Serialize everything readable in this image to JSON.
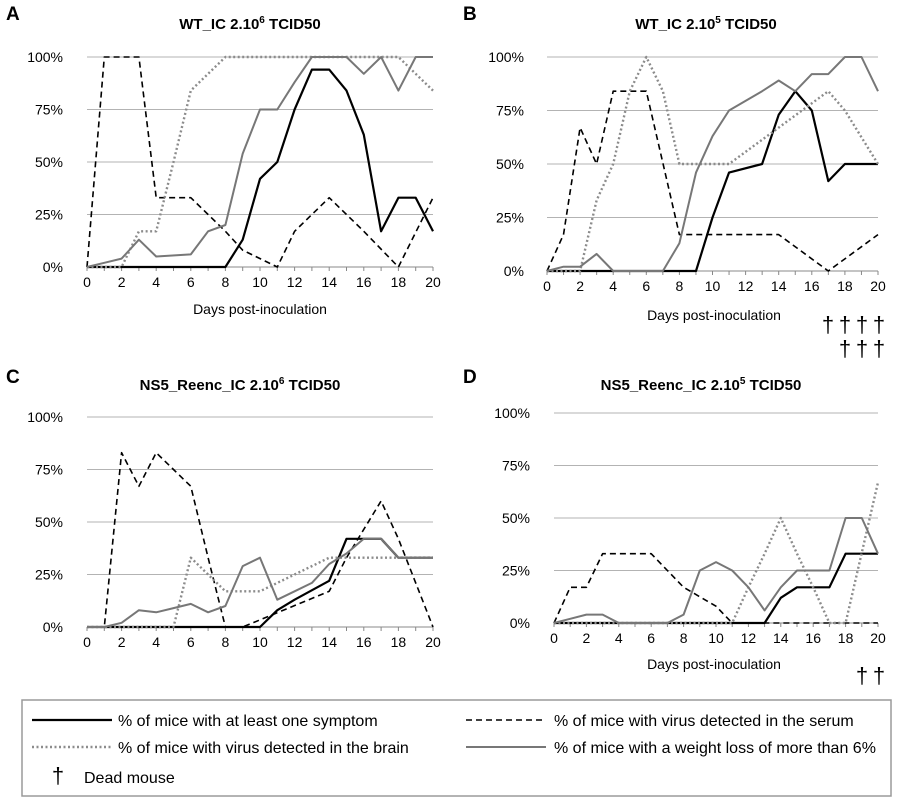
{
  "styles": {
    "symptom": {
      "color": "#000000",
      "dash": "",
      "width": 2.2
    },
    "serum": {
      "color": "#000000",
      "dash": "6 4",
      "width": 1.6
    },
    "brain": {
      "color": "#8c8c8c",
      "dash": "2 2.5",
      "width": 2.4
    },
    "weight": {
      "color": "#777777",
      "dash": "",
      "width": 2.0
    }
  },
  "chart_data": [
    {
      "panel": "A",
      "type": "line",
      "title_main": "WT_IC 2.10",
      "title_sup": "6",
      "title_rest": " TCID50",
      "xlabel": "Days post-inoculation",
      "xlim": [
        0,
        20
      ],
      "ylim": [
        0,
        100
      ],
      "yticks": [
        "0%",
        "25%",
        "50%",
        "75%",
        "100%"
      ],
      "xticks": [
        "0",
        "2",
        "4",
        "6",
        "8",
        "10",
        "12",
        "14",
        "16",
        "18",
        "20"
      ],
      "series": [
        {
          "name": "% of mice with at least one symptom",
          "key": "symptom",
          "points": [
            [
              0,
              0
            ],
            [
              8,
              0
            ],
            [
              9,
              13
            ],
            [
              10,
              42
            ],
            [
              11,
              50
            ],
            [
              12,
              75
            ],
            [
              13,
              94
            ],
            [
              14,
              94
            ],
            [
              15,
              84
            ],
            [
              16,
              63
            ],
            [
              17,
              17
            ],
            [
              18,
              33
            ],
            [
              19,
              33
            ],
            [
              20,
              17
            ]
          ]
        },
        {
          "name": "% of mice with virus detected in the serum",
          "key": "serum",
          "points": [
            [
              0,
              0
            ],
            [
              1,
              100
            ],
            [
              2,
              100
            ],
            [
              3,
              100
            ],
            [
              4,
              33
            ],
            [
              5,
              33
            ],
            [
              6,
              33
            ],
            [
              7,
              25
            ],
            [
              8,
              17
            ],
            [
              9,
              8
            ],
            [
              11,
              0
            ],
            [
              12,
              17
            ],
            [
              14,
              33
            ],
            [
              16,
              17
            ],
            [
              18,
              0
            ],
            [
              20,
              33
            ]
          ]
        },
        {
          "name": "% of mice with virus detected in the brain",
          "key": "brain",
          "points": [
            [
              0,
              0
            ],
            [
              1,
              0
            ],
            [
              2,
              0
            ],
            [
              3,
              17
            ],
            [
              4,
              17
            ],
            [
              5,
              50
            ],
            [
              6,
              84
            ],
            [
              7,
              92
            ],
            [
              8,
              100
            ],
            [
              16,
              100
            ],
            [
              17,
              100
            ],
            [
              18,
              100
            ],
            [
              19,
              92
            ],
            [
              20,
              84
            ]
          ]
        },
        {
          "name": "% of mice with a weight loss of more than 6%",
          "key": "weight",
          "points": [
            [
              0,
              0
            ],
            [
              1,
              2
            ],
            [
              2,
              4
            ],
            [
              3,
              13
            ],
            [
              4,
              5
            ],
            [
              6,
              6
            ],
            [
              7,
              17
            ],
            [
              8,
              20
            ],
            [
              9,
              54
            ],
            [
              10,
              75
            ],
            [
              11,
              75
            ],
            [
              12,
              88
            ],
            [
              13,
              100
            ],
            [
              15,
              100
            ],
            [
              16,
              92
            ],
            [
              17,
              100
            ],
            [
              18,
              84
            ],
            [
              19,
              100
            ],
            [
              20,
              100
            ]
          ]
        }
      ],
      "daggers": []
    },
    {
      "panel": "B",
      "type": "line",
      "title_main": "WT_IC 2.10",
      "title_sup": "5",
      "title_rest": " TCID50",
      "xlabel": "Days post-inoculation",
      "xlim": [
        0,
        20
      ],
      "ylim": [
        0,
        100
      ],
      "yticks": [
        "0%",
        "25%",
        "50%",
        "75%",
        "100%"
      ],
      "xticks": [
        "0",
        "2",
        "4",
        "6",
        "8",
        "10",
        "12",
        "14",
        "16",
        "18",
        "20"
      ],
      "series": [
        {
          "name": "% of mice with at least one symptom",
          "key": "symptom",
          "points": [
            [
              0,
              0
            ],
            [
              9,
              0
            ],
            [
              10,
              25
            ],
            [
              11,
              46
            ],
            [
              13,
              50
            ],
            [
              14,
              73
            ],
            [
              15,
              84
            ],
            [
              16,
              75
            ],
            [
              17,
              42
            ],
            [
              18,
              50
            ],
            [
              19,
              50
            ],
            [
              20,
              50
            ]
          ]
        },
        {
          "name": "% of mice with virus detected in the serum",
          "key": "serum",
          "points": [
            [
              0,
              0
            ],
            [
              1,
              17
            ],
            [
              2,
              67
            ],
            [
              3,
              50
            ],
            [
              4,
              84
            ],
            [
              5,
              84
            ],
            [
              6,
              84
            ],
            [
              8,
              17
            ],
            [
              9,
              17
            ],
            [
              14,
              17
            ],
            [
              17,
              0
            ],
            [
              20,
              17
            ]
          ]
        },
        {
          "name": "% of mice with virus detected in the brain",
          "key": "brain",
          "points": [
            [
              0,
              0
            ],
            [
              1,
              0
            ],
            [
              2,
              0
            ],
            [
              3,
              33
            ],
            [
              4,
              50
            ],
            [
              5,
              84
            ],
            [
              6,
              100
            ],
            [
              7,
              84
            ],
            [
              8,
              50
            ],
            [
              9,
              50
            ],
            [
              11,
              50
            ],
            [
              14,
              67
            ],
            [
              17,
              84
            ],
            [
              18,
              75
            ],
            [
              20,
              50
            ]
          ]
        },
        {
          "name": "% of mice with a weight loss of more than 6%",
          "key": "weight",
          "points": [
            [
              0,
              0
            ],
            [
              1,
              2
            ],
            [
              2,
              2
            ],
            [
              3,
              8
            ],
            [
              4,
              0
            ],
            [
              7,
              0
            ],
            [
              8,
              13
            ],
            [
              9,
              46
            ],
            [
              10,
              63
            ],
            [
              11,
              75
            ],
            [
              13,
              84
            ],
            [
              14,
              89
            ],
            [
              15,
              84
            ],
            [
              16,
              92
            ],
            [
              17,
              92
            ],
            [
              18,
              100
            ],
            [
              19,
              100
            ],
            [
              20,
              84
            ]
          ]
        }
      ],
      "daggers": [
        [
          "†",
          "†",
          "†",
          "†"
        ],
        [
          "†",
          "†",
          "†"
        ]
      ]
    },
    {
      "panel": "C",
      "type": "line",
      "title_main": "NS5_Reenc_IC 2.10",
      "title_sup": "6",
      "title_rest": " TCID50",
      "xlabel": "Days post-inoculation",
      "xlim": [
        0,
        20
      ],
      "ylim": [
        0,
        100
      ],
      "yticks": [
        "0%",
        "25%",
        "50%",
        "75%",
        "100%"
      ],
      "xticks": [
        "0",
        "2",
        "4",
        "6",
        "8",
        "10",
        "12",
        "14",
        "16",
        "18",
        "20"
      ],
      "series": [
        {
          "name": "% of mice with at least one symptom",
          "key": "symptom",
          "points": [
            [
              0,
              0
            ],
            [
              10,
              0
            ],
            [
              11,
              8
            ],
            [
              12,
              13
            ],
            [
              14,
              22
            ],
            [
              15,
              42
            ],
            [
              16,
              42
            ],
            [
              17,
              42
            ],
            [
              18,
              33
            ],
            [
              20,
              33
            ]
          ]
        },
        {
          "name": "% of mice with virus detected in the serum",
          "key": "serum",
          "points": [
            [
              0,
              0
            ],
            [
              1,
              0
            ],
            [
              2,
              83
            ],
            [
              3,
              67
            ],
            [
              4,
              83
            ],
            [
              5,
              75
            ],
            [
              6,
              67
            ],
            [
              7,
              33
            ],
            [
              8,
              0
            ],
            [
              9,
              0
            ],
            [
              14,
              17
            ],
            [
              15,
              33
            ],
            [
              17,
              60
            ],
            [
              18,
              42
            ],
            [
              20,
              0
            ]
          ]
        },
        {
          "name": "% of mice with virus detected in the brain",
          "key": "brain",
          "points": [
            [
              0,
              0
            ],
            [
              5,
              0
            ],
            [
              6,
              33
            ],
            [
              7,
              25
            ],
            [
              8,
              17
            ],
            [
              10,
              17
            ],
            [
              12,
              25
            ],
            [
              14,
              33
            ],
            [
              16,
              33
            ],
            [
              20,
              33
            ]
          ]
        },
        {
          "name": "% of mice with a weight loss of more than 6%",
          "key": "weight",
          "points": [
            [
              0,
              0
            ],
            [
              1,
              0
            ],
            [
              2,
              2
            ],
            [
              3,
              8
            ],
            [
              4,
              7
            ],
            [
              5,
              9
            ],
            [
              6,
              11
            ],
            [
              7,
              7
            ],
            [
              8,
              10
            ],
            [
              9,
              29
            ],
            [
              10,
              33
            ],
            [
              11,
              13
            ],
            [
              12,
              17
            ],
            [
              13,
              21
            ],
            [
              14,
              30
            ],
            [
              15,
              35
            ],
            [
              16,
              42
            ],
            [
              17,
              42
            ],
            [
              18,
              33
            ],
            [
              20,
              33
            ]
          ]
        }
      ],
      "daggers": []
    },
    {
      "panel": "D",
      "type": "line",
      "title_main": "NS5_Reenc_IC 2.10",
      "title_sup": "5",
      "title_rest": " TCID50",
      "xlabel": "Days post-inoculation",
      "xlim": [
        0,
        20
      ],
      "ylim": [
        0,
        100
      ],
      "yticks": [
        "0%",
        "25%",
        "50%",
        "75%",
        "100%"
      ],
      "xticks": [
        "0",
        "2",
        "4",
        "6",
        "8",
        "10",
        "12",
        "14",
        "16",
        "18",
        "20"
      ],
      "series": [
        {
          "name": "% of mice with at least one symptom",
          "key": "symptom",
          "points": [
            [
              0,
              0
            ],
            [
              13,
              0
            ],
            [
              14,
              12
            ],
            [
              15,
              17
            ],
            [
              16,
              17
            ],
            [
              17,
              17
            ],
            [
              18,
              33
            ],
            [
              19,
              33
            ],
            [
              20,
              33
            ]
          ]
        },
        {
          "name": "% of mice with virus detected in the serum",
          "key": "serum",
          "points": [
            [
              0,
              0
            ],
            [
              1,
              17
            ],
            [
              2,
              17
            ],
            [
              3,
              33
            ],
            [
              6,
              33
            ],
            [
              7,
              25
            ],
            [
              8,
              17
            ],
            [
              10,
              8
            ],
            [
              11,
              0
            ],
            [
              20,
              0
            ]
          ]
        },
        {
          "name": "% of mice with virus detected in the brain",
          "key": "brain",
          "points": [
            [
              0,
              0
            ],
            [
              11,
              0
            ],
            [
              12,
              17
            ],
            [
              13,
              33
            ],
            [
              14,
              50
            ],
            [
              15,
              33
            ],
            [
              16,
              17
            ],
            [
              17,
              0
            ],
            [
              18,
              0
            ],
            [
              20,
              67
            ]
          ]
        },
        {
          "name": "% of mice with a weight loss of more than 6%",
          "key": "weight",
          "points": [
            [
              0,
              0
            ],
            [
              1,
              2
            ],
            [
              2,
              4
            ],
            [
              3,
              4
            ],
            [
              4,
              0
            ],
            [
              7,
              0
            ],
            [
              8,
              4
            ],
            [
              9,
              25
            ],
            [
              10,
              29
            ],
            [
              11,
              25
            ],
            [
              12,
              17
            ],
            [
              13,
              6
            ],
            [
              14,
              17
            ],
            [
              15,
              25
            ],
            [
              17,
              25
            ],
            [
              18,
              50
            ],
            [
              19,
              50
            ],
            [
              20,
              33
            ]
          ]
        }
      ],
      "daggers": [
        [
          "†",
          "†"
        ]
      ]
    }
  ],
  "legend": {
    "items": [
      {
        "key": "symptom",
        "label": "% of mice with at least one symptom"
      },
      {
        "key": "serum",
        "label": "% of mice with virus detected in the serum"
      },
      {
        "key": "brain",
        "label": "% of mice with virus detected in the brain"
      },
      {
        "key": "weight",
        "label": "% of mice with a weight loss of more than 6%"
      }
    ],
    "dagger_symbol": "†",
    "dagger_label": "Dead mouse"
  }
}
